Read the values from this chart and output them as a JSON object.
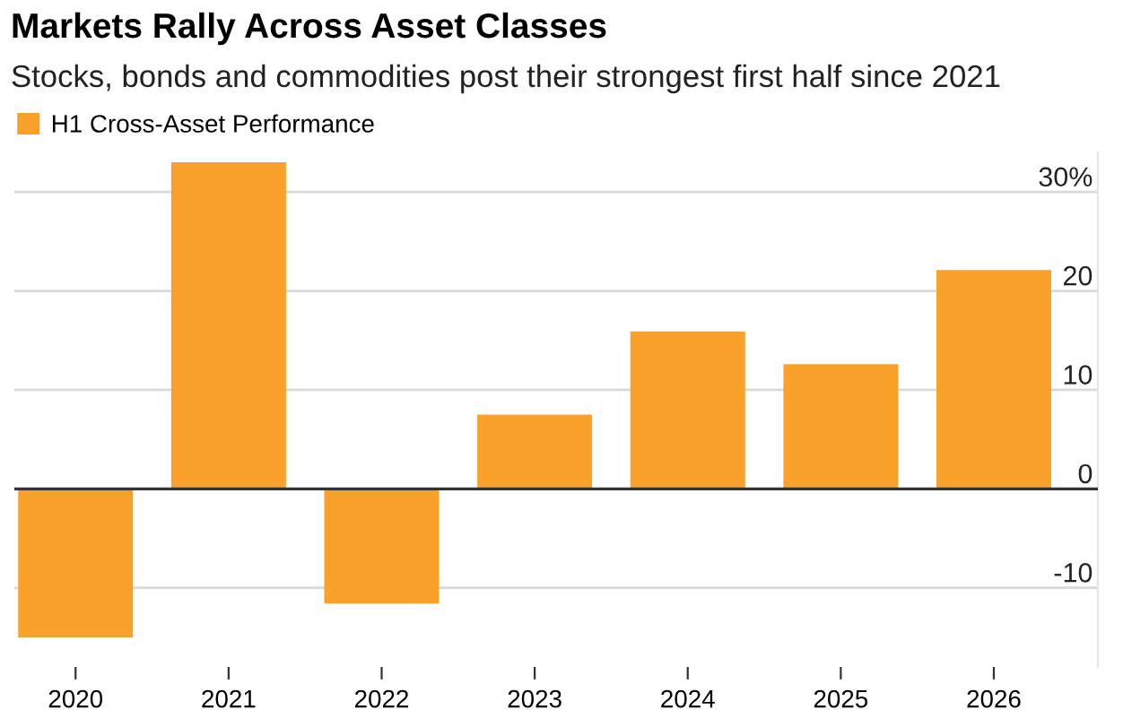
{
  "chart_data": {
    "type": "bar",
    "title": "Markets Rally Across Asset Classes",
    "subtitle": "Stocks, bonds and commodities post their strongest first half since 2021",
    "categories": [
      "2020",
      "2021",
      "2022",
      "2023",
      "2024",
      "2025",
      "2026"
    ],
    "series": [
      {
        "name": "H1 Cross-Asset Performance",
        "color": "#f9a12a",
        "values": [
          -15,
          33,
          -11.6,
          7.5,
          15.9,
          12.6,
          22.1
        ]
      }
    ],
    "ylim": [
      -18,
      34
    ],
    "yticks": [
      {
        "value": -10,
        "label": "-10"
      },
      0,
      10,
      20,
      {
        "value": 30,
        "label": "30%"
      }
    ],
    "grid": "y",
    "legend": "top left"
  }
}
